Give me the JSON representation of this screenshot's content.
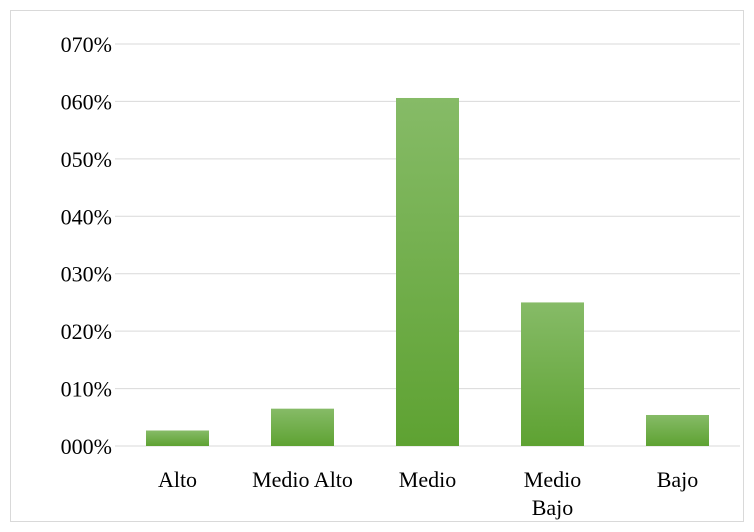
{
  "chart_data": {
    "type": "bar",
    "categories": [
      [
        "Alto"
      ],
      [
        "Medio Alto"
      ],
      [
        "Medio"
      ],
      [
        "Medio",
        "Bajo"
      ],
      [
        "Bajo"
      ]
    ],
    "values": [
      2.7,
      6.5,
      60.6,
      25.0,
      5.4
    ],
    "ylim": [
      0,
      70
    ],
    "yticks": [
      {
        "value": 0,
        "label": "000%"
      },
      {
        "value": 10,
        "label": "010%"
      },
      {
        "value": 20,
        "label": "020%"
      },
      {
        "value": 30,
        "label": "030%"
      },
      {
        "value": 40,
        "label": "040%"
      },
      {
        "value": 50,
        "label": "050%"
      },
      {
        "value": 60,
        "label": "060%"
      },
      {
        "value": 70,
        "label": "070%"
      }
    ],
    "grid": true,
    "legend": "none",
    "bar_color_top": "#86bb67",
    "bar_color_bottom": "#5ea232",
    "grid_color": "#d9d9d9"
  }
}
